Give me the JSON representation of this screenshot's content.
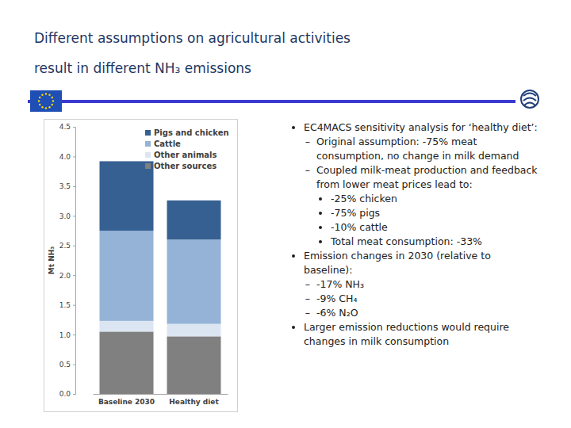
{
  "slide": {
    "title": [
      "Different assumptions on agricultural activities",
      "result in different NH₃ emissions"
    ],
    "bullets": [
      {
        "text": "EC4MACS sensitivity analysis for ‘healthy diet’:",
        "children": [
          {
            "text": "Original assumption: -75% meat consumption, no change in milk demand"
          },
          {
            "text": "Coupled milk-meat production and feedback from lower meat prices lead to:",
            "children": [
              {
                "text": "-25% chicken"
              },
              {
                "text": "-75% pigs"
              },
              {
                "text": "-10% cattle"
              },
              {
                "text": "Total meat consumption: -33%"
              }
            ]
          }
        ]
      },
      {
        "text": "Emission changes in 2030 (relative to baseline):",
        "children": [
          {
            "text": "-17% NH₃"
          },
          {
            "text": "-9% CH₄"
          },
          {
            "text": "-6% N₂O"
          }
        ]
      },
      {
        "text": "Larger emission reductions would require changes in milk consumption"
      }
    ]
  },
  "chart_data": {
    "type": "bar",
    "stacked": true,
    "categories": [
      "Baseline 2030",
      "Healthy diet"
    ],
    "ylabel": "Mt NH₃",
    "ylim": [
      0,
      4.5
    ],
    "yticks": [
      {
        "value": 0,
        "label": "0.0"
      },
      {
        "value": 0.5,
        "label": "0.5"
      },
      {
        "value": 1,
        "label": "1.0"
      },
      {
        "value": 1.5,
        "label": "1.5"
      },
      {
        "value": 2,
        "label": "2.0"
      },
      {
        "value": 2.5,
        "label": "2.5"
      },
      {
        "value": 3,
        "label": "3.0"
      },
      {
        "value": 3.5,
        "label": "3.5"
      },
      {
        "value": 4,
        "label": "4.0"
      },
      {
        "value": 4.5,
        "label": "4.5"
      }
    ],
    "grid": false,
    "legend": "upper right",
    "series": [
      {
        "name": "Other sources",
        "color": "#808080",
        "values": [
          1.05,
          0.97
        ]
      },
      {
        "name": "Other animals",
        "color": "#dce6f2",
        "values": [
          0.18,
          0.21
        ]
      },
      {
        "name": "Cattle",
        "color": "#95b3d7",
        "values": [
          1.52,
          1.42
        ]
      },
      {
        "name": "Pigs and chicken",
        "color": "#376092",
        "values": [
          1.17,
          0.66
        ]
      }
    ]
  }
}
